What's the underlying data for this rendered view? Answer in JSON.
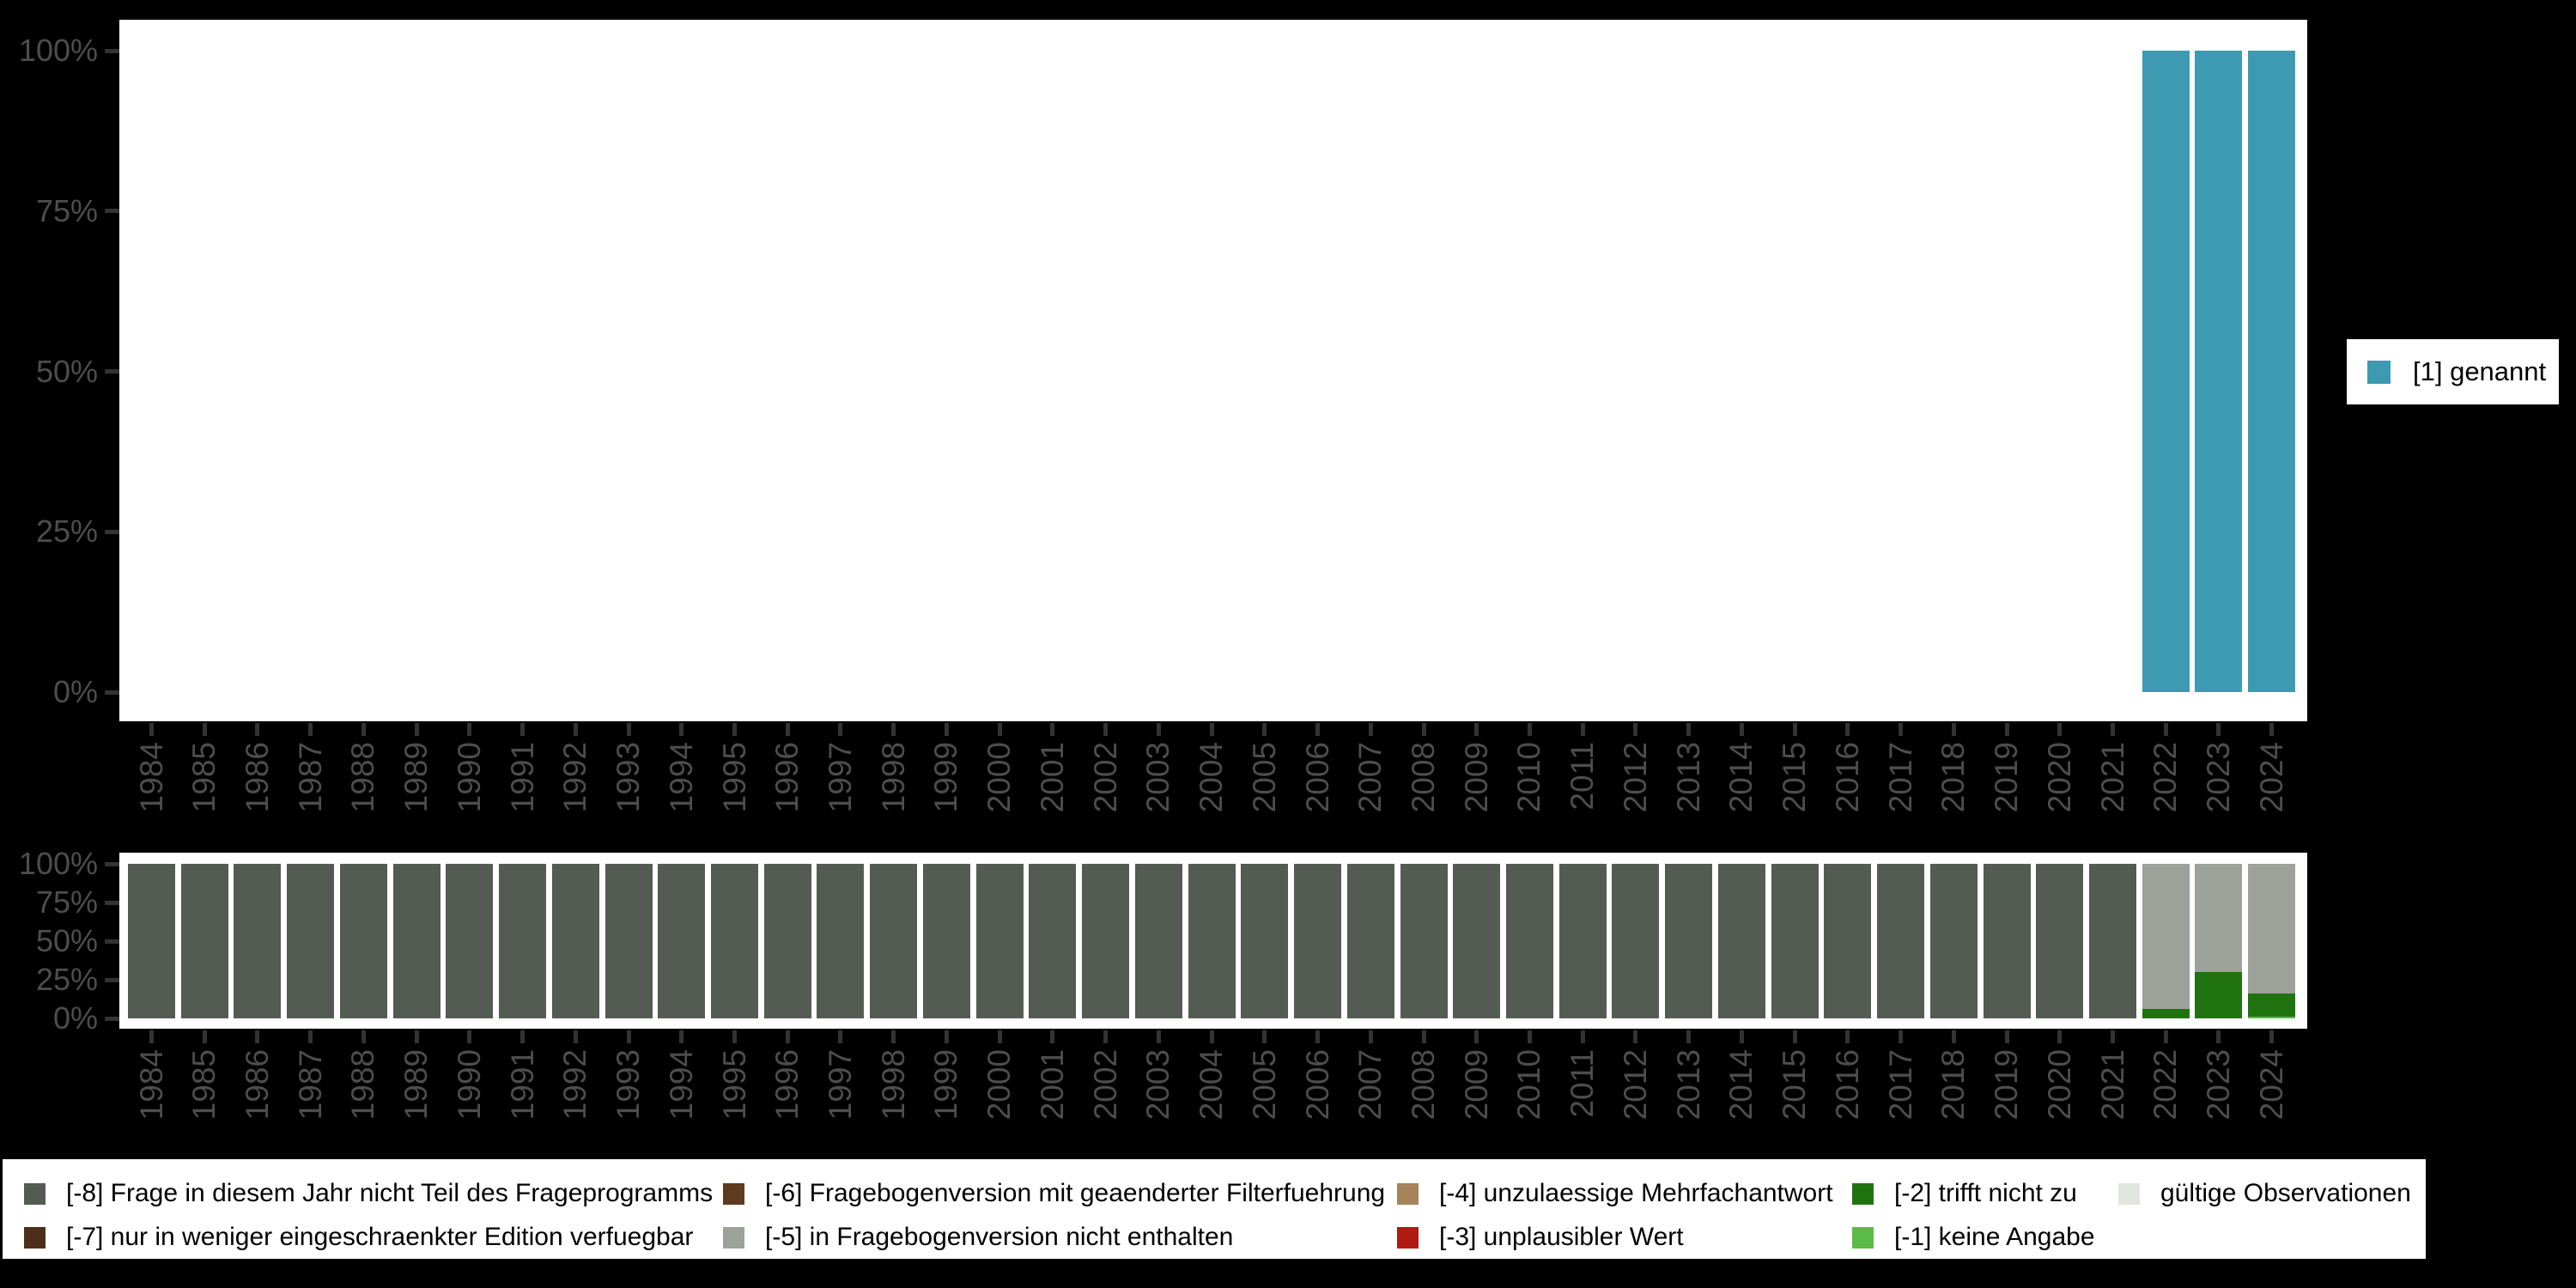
{
  "colors": {
    "background": "#000000",
    "panel": "#ffffff",
    "axis_text": "#4d4d4d",
    "tick": "#333333",
    "genannt": "#3d9ab2",
    "m8": "#545b53",
    "m7": "#4e2e18",
    "m6": "#5e3a1e",
    "m5": "#9ca29a",
    "m4": "#a5845c",
    "m3": "#b01c13",
    "m2": "#217311",
    "m1": "#5abb47",
    "valid": "#e2e6e0"
  },
  "legend_right": {
    "label": "[1] genannt",
    "color_key": "genannt"
  },
  "legend_bottom": {
    "columns": [
      {
        "row1": {
          "label": "[-8] Frage in diesem Jahr nicht Teil des Frageprogramms",
          "color_key": "m8"
        },
        "row2": {
          "label": "[-7] nur in weniger eingeschraenkter Edition verfuegbar",
          "color_key": "m7"
        }
      },
      {
        "row1": {
          "label": "[-6] Fragebogenversion mit geaenderter Filterfuehrung",
          "color_key": "m6"
        },
        "row2": {
          "label": "[-5] in Fragebogenversion nicht enthalten",
          "color_key": "m5"
        }
      },
      {
        "row1": {
          "label": "[-4] unzulaessige Mehrfachantwort",
          "color_key": "m4"
        },
        "row2": {
          "label": "[-3] unplausibler Wert",
          "color_key": "m3"
        }
      },
      {
        "row1": {
          "label": "[-2] trifft nicht zu",
          "color_key": "m2"
        },
        "row2": {
          "label": "[-1] keine Angabe",
          "color_key": "m1"
        }
      },
      {
        "row1": {
          "label": "gültige Observationen",
          "color_key": "valid"
        }
      }
    ]
  },
  "chart_data": [
    {
      "type": "bar",
      "stacked": true,
      "unit": "percent",
      "title": "",
      "xlabel": "",
      "ylabel": "",
      "ylim": [
        0,
        100
      ],
      "grid": false,
      "legend_position": "right",
      "y_ticks": [
        "100%",
        "75%",
        "50%",
        "25%",
        "0%"
      ],
      "categories": [
        "1984",
        "1985",
        "1986",
        "1987",
        "1988",
        "1989",
        "1990",
        "1991",
        "1992",
        "1993",
        "1994",
        "1995",
        "1996",
        "1997",
        "1998",
        "1999",
        "2000",
        "2001",
        "2002",
        "2003",
        "2004",
        "2005",
        "2006",
        "2007",
        "2008",
        "2009",
        "2010",
        "2011",
        "2012",
        "2013",
        "2014",
        "2015",
        "2016",
        "2017",
        "2018",
        "2019",
        "2020",
        "2021",
        "2022",
        "2023",
        "2024"
      ],
      "series": [
        {
          "name": "[1] genannt",
          "color_key": "genannt",
          "values": [
            0,
            0,
            0,
            0,
            0,
            0,
            0,
            0,
            0,
            0,
            0,
            0,
            0,
            0,
            0,
            0,
            0,
            0,
            0,
            0,
            0,
            0,
            0,
            0,
            0,
            0,
            0,
            0,
            0,
            0,
            0,
            0,
            0,
            0,
            0,
            0,
            0,
            0,
            100,
            100,
            100
          ]
        }
      ]
    },
    {
      "type": "bar",
      "stacked": true,
      "unit": "percent",
      "title": "",
      "xlabel": "",
      "ylabel": "",
      "ylim": [
        0,
        100
      ],
      "grid": false,
      "legend_position": "bottom",
      "y_ticks": [
        "100%",
        "75%",
        "50%",
        "25%",
        "0%"
      ],
      "categories": [
        "1984",
        "1985",
        "1986",
        "1987",
        "1988",
        "1989",
        "1990",
        "1991",
        "1992",
        "1993",
        "1994",
        "1995",
        "1996",
        "1997",
        "1998",
        "1999",
        "2000",
        "2001",
        "2002",
        "2003",
        "2004",
        "2005",
        "2006",
        "2007",
        "2008",
        "2009",
        "2010",
        "2011",
        "2012",
        "2013",
        "2014",
        "2015",
        "2016",
        "2017",
        "2018",
        "2019",
        "2020",
        "2021",
        "2022",
        "2023",
        "2024"
      ],
      "series": [
        {
          "name": "[-1] keine Angabe",
          "color_key": "m1",
          "values": [
            0,
            0,
            0,
            0,
            0,
            0,
            0,
            0,
            0,
            0,
            0,
            0,
            0,
            0,
            0,
            0,
            0,
            0,
            0,
            0,
            0,
            0,
            0,
            0,
            0,
            0,
            0,
            0,
            0,
            0,
            0,
            0,
            0,
            0,
            0,
            0,
            0,
            0,
            0,
            0,
            1
          ]
        },
        {
          "name": "[-2] trifft nicht zu",
          "color_key": "m2",
          "values": [
            0,
            0,
            0,
            0,
            0,
            0,
            0,
            0,
            0,
            0,
            0,
            0,
            0,
            0,
            0,
            0,
            0,
            0,
            0,
            0,
            0,
            0,
            0,
            0,
            0,
            0,
            0,
            0,
            0,
            0,
            0,
            0,
            0,
            0,
            0,
            0,
            0,
            0,
            6,
            30,
            15
          ]
        },
        {
          "name": "[-5] in Fragebogenversion nicht enthalten",
          "color_key": "m5",
          "values": [
            0,
            0,
            0,
            0,
            0,
            0,
            0,
            0,
            0,
            0,
            0,
            0,
            0,
            0,
            0,
            0,
            0,
            0,
            0,
            0,
            0,
            0,
            0,
            0,
            0,
            0,
            0,
            0,
            0,
            0,
            0,
            0,
            0,
            0,
            0,
            0,
            0,
            0,
            94,
            70,
            84
          ]
        },
        {
          "name": "[-8] Frage in diesem Jahr nicht Teil des Frageprogramms",
          "color_key": "m8",
          "values": [
            100,
            100,
            100,
            100,
            100,
            100,
            100,
            100,
            100,
            100,
            100,
            100,
            100,
            100,
            100,
            100,
            100,
            100,
            100,
            100,
            100,
            100,
            100,
            100,
            100,
            100,
            100,
            100,
            100,
            100,
            100,
            100,
            100,
            100,
            100,
            100,
            100,
            100,
            0,
            0,
            0
          ]
        }
      ]
    }
  ]
}
